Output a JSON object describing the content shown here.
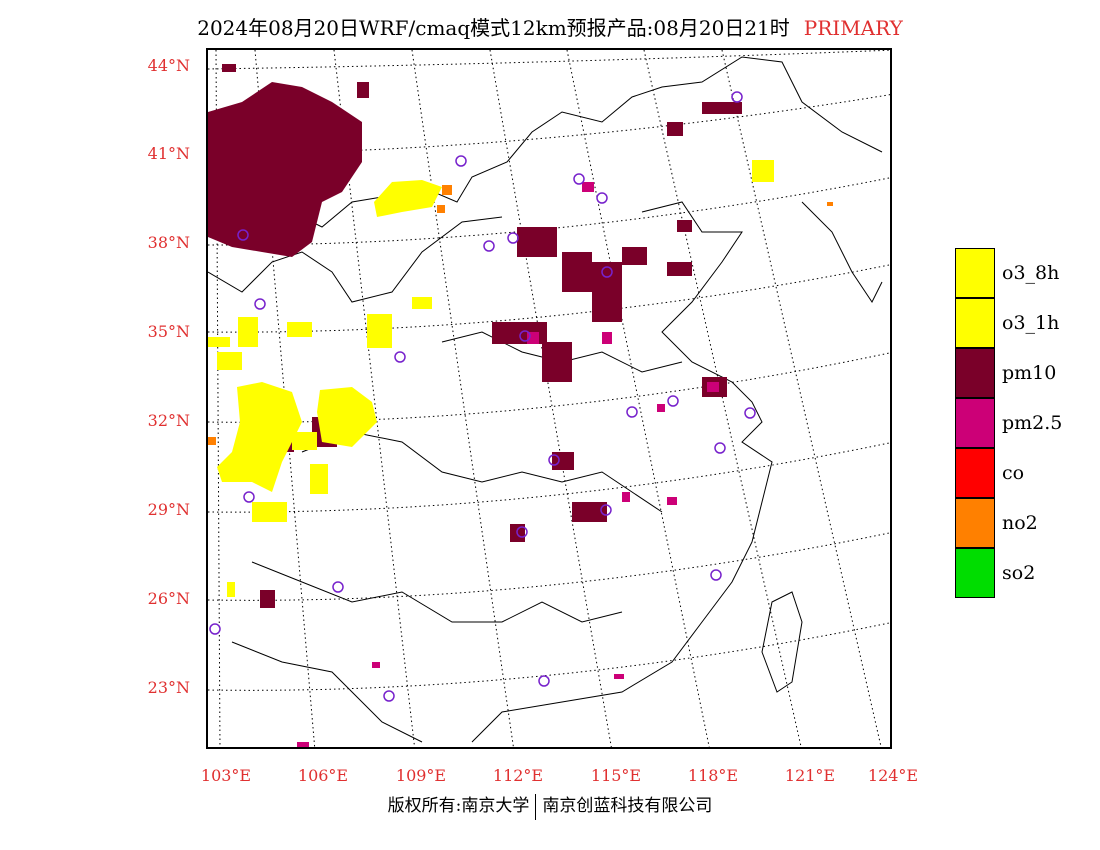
{
  "header": {
    "title": "2024年08月20日WRF/cmaq模式12km预报产品:08月20日21时",
    "tag": "PRIMARY"
  },
  "map": {
    "lat_labels": [
      "44°N",
      "41°N",
      "38°N",
      "35°N",
      "32°N",
      "29°N",
      "26°N",
      "23°N"
    ],
    "lon_labels": [
      "103°E",
      "106°E",
      "109°E",
      "112°E",
      "115°E",
      "118°E",
      "121°E",
      "124°E"
    ]
  },
  "legend": {
    "items": [
      {
        "label": "o3_8h",
        "color": "#ffff00"
      },
      {
        "label": "o3_1h",
        "color": "#ffff00"
      },
      {
        "label": "pm10",
        "color": "#7a0029"
      },
      {
        "label": "pm2.5",
        "color": "#cc0077"
      },
      {
        "label": "co",
        "color": "#ff0000"
      },
      {
        "label": "no2",
        "color": "#ff8000"
      },
      {
        "label": "so2",
        "color": "#00dd00"
      }
    ]
  },
  "footer": {
    "left": "版权所有:南京大学",
    "right": "南京创蓝科技有限公司"
  }
}
